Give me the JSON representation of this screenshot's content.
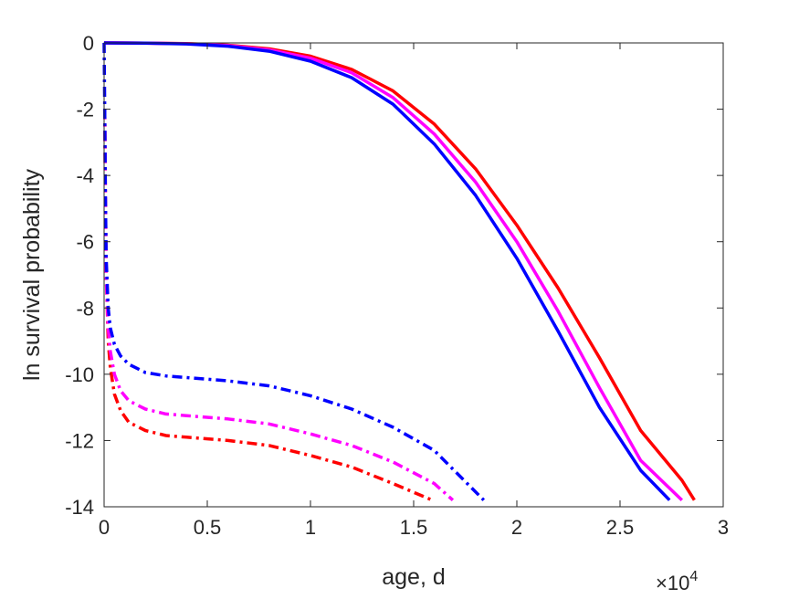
{
  "chart_data": {
    "type": "line",
    "title": "",
    "xlabel": "age, d",
    "ylabel": "ln survival probability",
    "x_multiplier_label": "×10",
    "x_multiplier_exponent": "4",
    "xlim": [
      0,
      30000
    ],
    "ylim": [
      -14,
      0
    ],
    "x_ticks": [
      0,
      5000,
      10000,
      15000,
      20000,
      25000,
      30000
    ],
    "x_tick_labels": [
      "0",
      "0.5",
      "1",
      "1.5",
      "2",
      "2.5",
      "3"
    ],
    "y_ticks": [
      0,
      -2,
      -4,
      -6,
      -8,
      -10,
      -12,
      -14
    ],
    "y_tick_labels": [
      "0",
      "-2",
      "-4",
      "-6",
      "-8",
      "-10",
      "-12",
      "-14"
    ],
    "grid": false,
    "series": [
      {
        "color": "#ff0000",
        "style": "solid",
        "x": [
          0,
          2000,
          4000,
          6000,
          8000,
          10000,
          12000,
          14000,
          16000,
          18000,
          20000,
          22000,
          24000,
          26000,
          28000,
          28600
        ],
        "y": [
          0,
          -0.005,
          -0.02,
          -0.07,
          -0.18,
          -0.4,
          -0.8,
          -1.45,
          -2.45,
          -3.8,
          -5.5,
          -7.4,
          -9.5,
          -11.7,
          -13.2,
          -13.8
        ]
      },
      {
        "color": "#ff00ff",
        "style": "solid",
        "x": [
          0,
          2000,
          4000,
          6000,
          8000,
          10000,
          12000,
          14000,
          16000,
          18000,
          20000,
          22000,
          24000,
          26000,
          28000
        ],
        "y": [
          0,
          -0.006,
          -0.025,
          -0.08,
          -0.21,
          -0.46,
          -0.9,
          -1.65,
          -2.75,
          -4.2,
          -6.0,
          -8.1,
          -10.4,
          -12.6,
          -13.8
        ]
      },
      {
        "color": "#0000ff",
        "style": "solid",
        "x": [
          0,
          2000,
          4000,
          6000,
          8000,
          10000,
          12000,
          14000,
          16000,
          18000,
          20000,
          22000,
          24000,
          26000,
          27400
        ],
        "y": [
          0,
          -0.008,
          -0.03,
          -0.1,
          -0.25,
          -0.55,
          -1.05,
          -1.85,
          -3.05,
          -4.6,
          -6.5,
          -8.7,
          -11.0,
          -12.9,
          -13.8
        ]
      },
      {
        "color": "#ff0000",
        "style": "dashdot",
        "x": [
          30,
          60,
          100,
          200,
          300,
          500,
          800,
          1200,
          2000,
          3000,
          4000,
          6000,
          8000,
          10000,
          12000,
          14000,
          15900
        ],
        "y": [
          -2,
          -4.5,
          -7,
          -9.0,
          -9.8,
          -10.6,
          -11.1,
          -11.45,
          -11.7,
          -11.85,
          -11.9,
          -12.0,
          -12.15,
          -12.45,
          -12.8,
          -13.3,
          -13.8
        ]
      },
      {
        "color": "#ff00ff",
        "style": "dashdot",
        "x": [
          30,
          60,
          100,
          200,
          300,
          500,
          800,
          1200,
          2000,
          3000,
          4000,
          6000,
          8000,
          10000,
          12000,
          14000,
          16000,
          16900
        ],
        "y": [
          -2,
          -4.5,
          -7,
          -8.6,
          -9.3,
          -10.0,
          -10.5,
          -10.8,
          -11.05,
          -11.2,
          -11.25,
          -11.35,
          -11.5,
          -11.8,
          -12.15,
          -12.65,
          -13.3,
          -13.8
        ]
      },
      {
        "color": "#0000ff",
        "style": "dashdot",
        "x": [
          0,
          30,
          60,
          100,
          200,
          300,
          500,
          800,
          1200,
          2000,
          3000,
          4000,
          6000,
          8000,
          10000,
          12000,
          14000,
          16000,
          18400
        ],
        "y": [
          0,
          -2,
          -4.5,
          -6.5,
          -8.0,
          -8.6,
          -9.1,
          -9.45,
          -9.7,
          -9.95,
          -10.05,
          -10.1,
          -10.2,
          -10.35,
          -10.65,
          -11.05,
          -11.6,
          -12.3,
          -13.8
        ]
      }
    ]
  }
}
